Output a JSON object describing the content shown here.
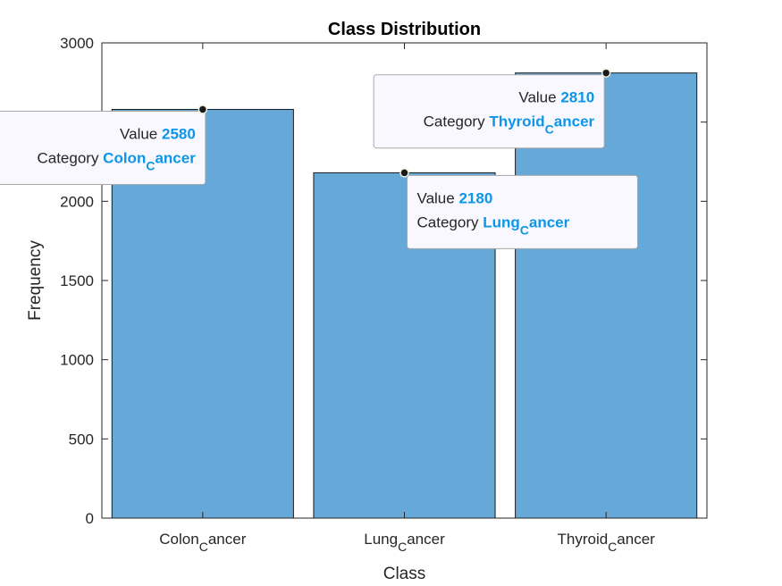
{
  "chart_data": {
    "type": "bar",
    "title": "Class Distribution",
    "xlabel": "Class",
    "ylabel": "Frequency",
    "ylim": [
      0,
      3000
    ],
    "yticks": [
      0,
      500,
      1000,
      1500,
      2000,
      2500,
      3000
    ],
    "categories": [
      {
        "main": "Colon",
        "sub": "C",
        "rest": "ancer"
      },
      {
        "main": "Lung",
        "sub": "C",
        "rest": "ancer"
      },
      {
        "main": "Thyroid",
        "sub": "C",
        "rest": "ancer"
      }
    ],
    "values": [
      2580,
      2180,
      2810
    ],
    "bar_color": "#66a8d8",
    "datatips": [
      {
        "value_label": "Value",
        "value": "2580",
        "category_label": "Category",
        "category_main": "Colon",
        "category_sub": "C",
        "category_rest": "ancer",
        "placement": "left",
        "align": "right"
      },
      {
        "value_label": "Value",
        "value": "2180",
        "category_label": "Category",
        "category_main": "Lung",
        "category_sub": "C",
        "category_rest": "ancer",
        "placement": "bottom-right",
        "align": "left"
      },
      {
        "value_label": "Value",
        "value": "2810",
        "category_label": "Category",
        "category_main": "Thyroid",
        "category_sub": "C",
        "category_rest": "ancer",
        "placement": "top-left",
        "align": "right"
      }
    ],
    "datatip_value_color": "#0d95e8"
  }
}
